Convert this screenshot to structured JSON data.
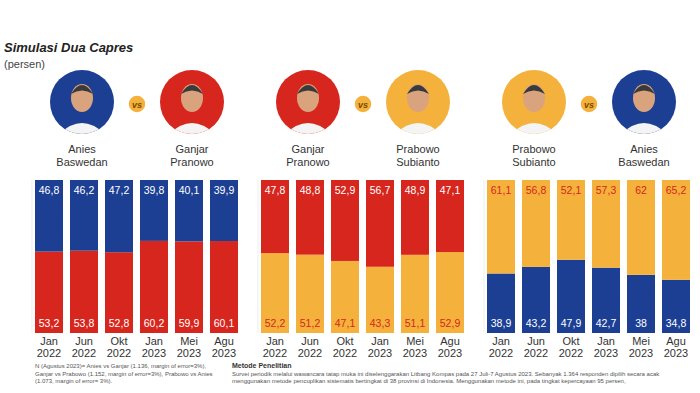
{
  "title": "Simulasi Dua Capres",
  "subtitle": "(persen)",
  "vs": "vs",
  "footnote": "N (Agustus 2023)= Anies vs Ganjar (1.136, margin of error=3%), Ganjar vs Prabowo (1.152, margin of error=3%), Prabowo vs Anies (1.073, margin of error= 3%).",
  "method_title": "Metode Penelitian",
  "method_text": "Survei periodik melalui wawancara tatap muka ini diselenggarakan Litbang Kompas pada 27 Juli-7 Agustus 2023. Sebanyak 1.364 responden dipilih secara acak menggunakan metode pencuplikan sistematis bertingkat di 38 provinsi di Indonesia. Menggunakan metode ini, pada tingkat kepercayaan 95 persen,",
  "chart_data": [
    {
      "type": "bar",
      "stacked": true,
      "data_labels": true,
      "tick_labels": "x",
      "categories": [
        "Jan 2022",
        "Jun 2022",
        "Okt 2022",
        "Jan 2023",
        "Mei 2023",
        "Agu 2023"
      ],
      "ylim": [
        0,
        100
      ],
      "series": [
        {
          "name": "Ganjar Pranowo",
          "color": "#d7261e",
          "values": [
            53.2,
            53.8,
            52.8,
            60.2,
            59.9,
            60.1
          ],
          "value_labels": [
            "53,2",
            "53,8",
            "52,8",
            "60,2",
            "59,9",
            "60,1"
          ]
        },
        {
          "name": "Anies Baswedan",
          "color": "#1d3f93",
          "values": [
            46.8,
            46.2,
            47.2,
            39.8,
            40.1,
            39.9
          ],
          "value_labels": [
            "46,8",
            "46,2",
            "47,2",
            "39,8",
            "40,1",
            "39,9"
          ]
        }
      ]
    },
    {
      "type": "bar",
      "stacked": true,
      "data_labels": true,
      "tick_labels": "x",
      "categories": [
        "Jan 2022",
        "Jun 2022",
        "Okt 2022",
        "Jan 2023",
        "Mei 2023",
        "Agu 2023"
      ],
      "ylim": [
        0,
        100
      ],
      "series": [
        {
          "name": "Prabowo Subianto",
          "color": "#f4b13c",
          "values": [
            52.2,
            51.2,
            47.1,
            43.3,
            51.1,
            52.9
          ],
          "value_labels": [
            "52,2",
            "51,2",
            "47,1",
            "43,3",
            "51,1",
            "52,9"
          ]
        },
        {
          "name": "Ganjar Pranowo",
          "color": "#d7261e",
          "values": [
            47.8,
            48.8,
            52.9,
            56.7,
            48.9,
            47.1
          ],
          "value_labels": [
            "47,8",
            "48,8",
            "52,9",
            "56,7",
            "48,9",
            "47,1"
          ]
        }
      ]
    },
    {
      "type": "bar",
      "stacked": true,
      "data_labels": true,
      "tick_labels": "x",
      "categories": [
        "Jan 2022",
        "Jun 2022",
        "Okt 2022",
        "Jan 2023",
        "Mei 2023",
        "Agu 2023"
      ],
      "ylim": [
        0,
        100
      ],
      "series": [
        {
          "name": "Anies Baswedan",
          "color": "#1d3f93",
          "values": [
            38.9,
            43.2,
            47.9,
            42.7,
            38,
            34.8
          ],
          "value_labels": [
            "38,9",
            "43,2",
            "47,9",
            "42,7",
            "38",
            "34,8"
          ]
        },
        {
          "name": "Prabowo Subianto",
          "color": "#f4b13c",
          "values": [
            61.1,
            56.8,
            52.1,
            57.3,
            62,
            65.2
          ],
          "value_labels": [
            "61,1",
            "56,8",
            "52,1",
            "57,3",
            "62",
            "65,2"
          ]
        }
      ]
    }
  ]
}
